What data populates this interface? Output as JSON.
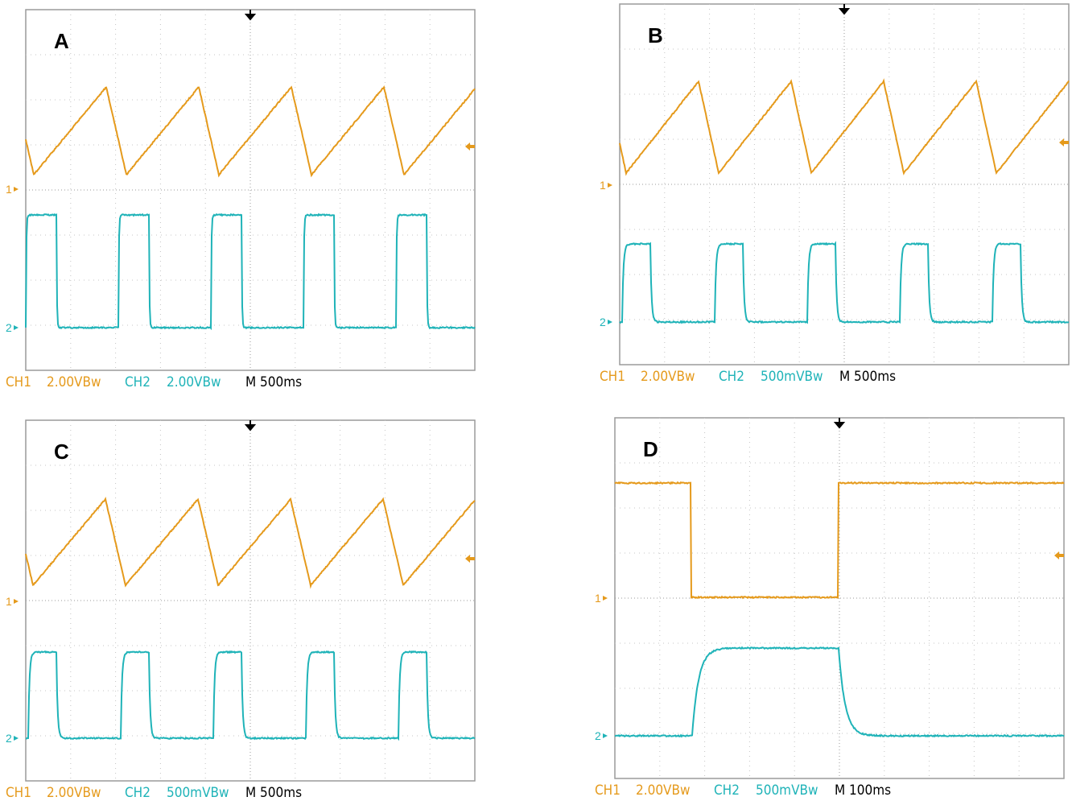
{
  "panels": [
    {
      "label": "A",
      "ch1": "CH1",
      "ch1_scale": "2.00V",
      "ch1_bw": "Bw",
      "ch2": "CH2",
      "ch2_scale": "2.00V",
      "ch2_bw": "Bw",
      "timebase": "M 500ms",
      "marker1": "1",
      "marker2": "2"
    },
    {
      "label": "B",
      "ch1": "CH1",
      "ch1_scale": "2.00V",
      "ch1_bw": "Bw",
      "ch2": "CH2",
      "ch2_scale": "500mV",
      "ch2_bw": "Bw",
      "timebase": "M 500ms",
      "marker1": "1",
      "marker2": "2"
    },
    {
      "label": "C",
      "ch1": "CH1",
      "ch1_scale": "2.00V",
      "ch1_bw": "Bw",
      "ch2": "CH2",
      "ch2_scale": "500mV",
      "ch2_bw": "Bw",
      "timebase": "M 500ms",
      "marker1": "1",
      "marker2": "2"
    },
    {
      "label": "D",
      "ch1": "CH1",
      "ch1_scale": "2.00V",
      "ch1_bw": "Bw",
      "ch2": "CH2",
      "ch2_scale": "500mV",
      "ch2_bw": "Bw",
      "timebase": "M 100ms",
      "marker1": "1",
      "marker2": "2"
    }
  ]
}
